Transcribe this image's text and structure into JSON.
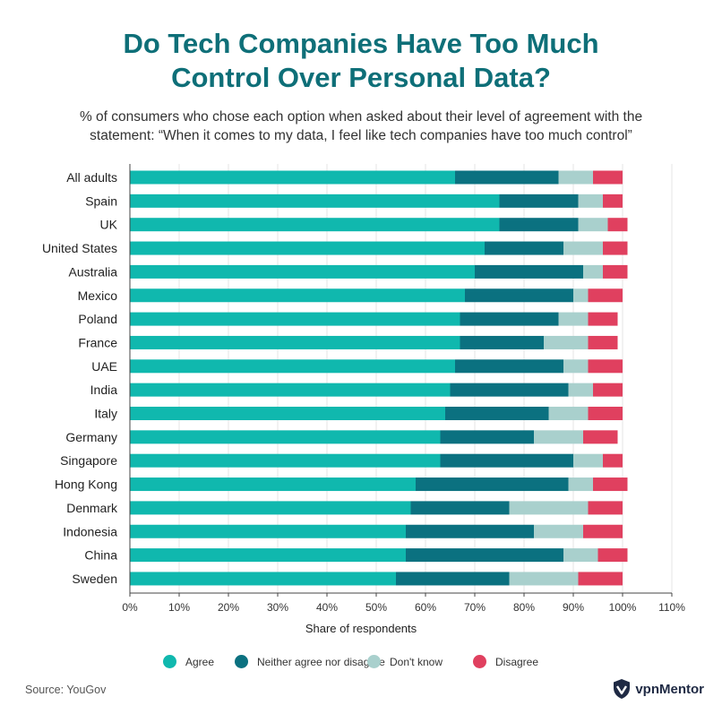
{
  "header": {
    "title_line1": "Do Tech Companies Have Too Much",
    "title_line2": "Control Over Personal Data?",
    "subtitle_line1": "% of consumers who chose each option when asked about their level of agreement with the",
    "subtitle_line2": "statement: “When it comes to my data, I feel like tech companies have too much control”"
  },
  "footer": {
    "source": "Source: YouGov",
    "brand": "vpnMentor"
  },
  "chart_data": {
    "type": "bar",
    "orientation": "horizontal",
    "stacked": true,
    "title": "Do Tech Companies Have Too Much Control Over Personal Data?",
    "xlabel": "Share of respondents",
    "ylabel": "",
    "xlim": [
      0,
      110
    ],
    "xticks": [
      "0%",
      "10%",
      "20%",
      "30%",
      "40%",
      "50%",
      "60%",
      "70%",
      "80%",
      "90%",
      "100%",
      "110%"
    ],
    "grid": true,
    "legend_position": "bottom",
    "categories": [
      "All adults",
      "Spain",
      "UK",
      "United States",
      "Australia",
      "Mexico",
      "Poland",
      "France",
      "UAE",
      "India",
      "Italy",
      "Germany",
      "Singapore",
      "Hong Kong",
      "Denmark",
      "Indonesia",
      "China",
      "Sweden"
    ],
    "series": [
      {
        "name": "Agree",
        "color": "#10b8ae",
        "values": [
          66,
          75,
          75,
          72,
          70,
          68,
          67,
          67,
          66,
          65,
          64,
          63,
          63,
          58,
          57,
          56,
          56,
          54
        ]
      },
      {
        "name": "Neither agree nor disagree",
        "color": "#0b7180",
        "values": [
          21,
          16,
          16,
          16,
          22,
          22,
          20,
          17,
          22,
          24,
          21,
          19,
          27,
          31,
          20,
          26,
          32,
          23
        ]
      },
      {
        "name": "Don't know",
        "color": "#a9d0cd",
        "values": [
          7,
          5,
          6,
          8,
          4,
          3,
          6,
          9,
          5,
          5,
          8,
          10,
          6,
          5,
          16,
          10,
          7,
          14
        ]
      },
      {
        "name": "Disagree",
        "color": "#e0405f",
        "values": [
          6,
          4,
          4,
          5,
          5,
          7,
          6,
          6,
          7,
          6,
          7,
          7,
          4,
          7,
          7,
          8,
          6,
          9
        ]
      }
    ]
  }
}
